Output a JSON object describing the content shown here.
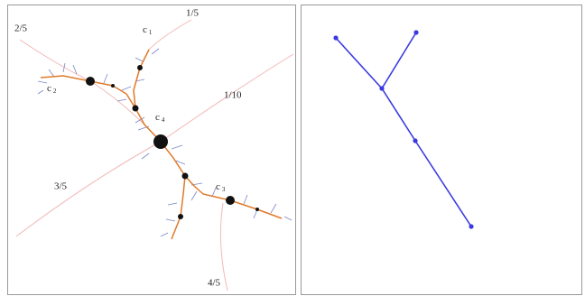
{
  "angle_labels": [
    "2/5",
    "1/5",
    "1/10",
    "3/5",
    "4/5"
  ],
  "critical_points": [
    {
      "symbol": "c",
      "subscript": "1"
    },
    {
      "symbol": "c",
      "subscript": "2"
    },
    {
      "symbol": "c",
      "subscript": "4"
    },
    {
      "symbol": "c",
      "subscript": "3"
    }
  ]
}
